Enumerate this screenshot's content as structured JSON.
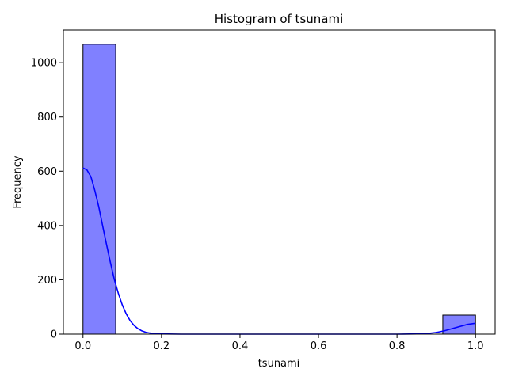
{
  "chart_data": {
    "type": "bar",
    "title": "Histogram of tsunami",
    "xlabel": "tsunami",
    "ylabel": "Frequency",
    "xlim": [
      -0.05,
      1.05
    ],
    "ylim": [
      0,
      1120
    ],
    "xticks": [
      0.0,
      0.2,
      0.4,
      0.6,
      0.8,
      1.0
    ],
    "xtick_labels": [
      "0.0",
      "0.2",
      "0.4",
      "0.6",
      "0.8",
      "1.0"
    ],
    "yticks": [
      0,
      200,
      400,
      600,
      800,
      1000
    ],
    "ytick_labels": [
      "0",
      "200",
      "400",
      "600",
      "800",
      "1000"
    ],
    "grid": false,
    "bin_width": 0.08333,
    "bins": [
      {
        "x0": 0.0,
        "x1": 0.08333,
        "count": 1068
      },
      {
        "x0": 0.91667,
        "x1": 1.0,
        "count": 70
      }
    ],
    "kde": {
      "x": [
        0.0,
        0.01,
        0.02,
        0.03,
        0.04,
        0.05,
        0.06,
        0.07,
        0.08,
        0.09,
        0.1,
        0.11,
        0.12,
        0.13,
        0.14,
        0.15,
        0.16,
        0.17,
        0.18,
        0.2,
        0.25,
        0.3,
        0.4,
        0.5,
        0.6,
        0.7,
        0.8,
        0.85,
        0.88,
        0.9,
        0.92,
        0.94,
        0.96,
        0.98,
        1.0
      ],
      "y": [
        612,
        605,
        580,
        530,
        470,
        400,
        330,
        262,
        200,
        150,
        108,
        75,
        50,
        32,
        20,
        12,
        7,
        4,
        2,
        1,
        0,
        0,
        0,
        0,
        0,
        0,
        0,
        1,
        3,
        6,
        12,
        20,
        28,
        36,
        40
      ]
    },
    "colors": {
      "bar_fill": "#8080ff",
      "bar_edge": "#000000",
      "kde_line": "#0000ff"
    }
  }
}
